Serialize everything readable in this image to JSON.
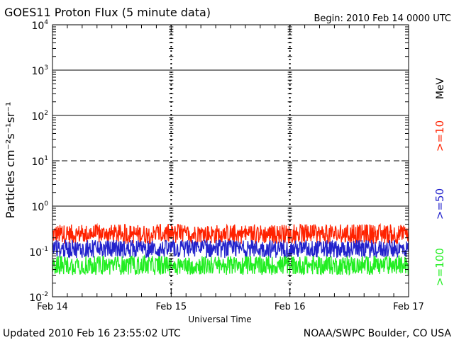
{
  "header": {
    "title": "GOES11 Proton Flux (5 minute data)",
    "begin": "Begin: 2010 Feb 14 0000 UTC"
  },
  "footer": {
    "updated": "Updated 2010 Feb 16 23:55:02 UTC",
    "source": "NOAA/SWPC Boulder, CO USA"
  },
  "legend": {
    "unit": "MeV",
    "entries": [
      {
        "label": ">=10",
        "color": "#ff2200"
      },
      {
        "label": ">=50",
        "color": "#2222cc"
      },
      {
        "label": ">=100",
        "color": "#22ee22"
      }
    ]
  },
  "chart_data": {
    "type": "line",
    "title": "GOES11 Proton Flux (5 minute data)",
    "xlabel": "Universal Time",
    "ylabel": "Particles cm⁻²s⁻¹sr⁻¹",
    "y_scale": "log",
    "ylim": [
      0.01,
      10000
    ],
    "y_ticks": [
      {
        "base": "10",
        "exp": "-2"
      },
      {
        "base": "10",
        "exp": "-1"
      },
      {
        "base": "10",
        "exp": "0"
      },
      {
        "base": "10",
        "exp": "1"
      },
      {
        "base": "10",
        "exp": "2"
      },
      {
        "base": "10",
        "exp": "3"
      },
      {
        "base": "10",
        "exp": "4"
      }
    ],
    "x_ticks": [
      "Feb 14",
      "Feb 15",
      "Feb 16",
      "Feb 17"
    ],
    "xlim": [
      "2010-02-14",
      "2010-02-17"
    ],
    "threshold_lines": [
      {
        "value": 1,
        "style": "solid"
      },
      {
        "value": 10,
        "style": "dashed"
      },
      {
        "value": 100,
        "style": "solid"
      },
      {
        "value": 1000,
        "style": "solid"
      }
    ],
    "series": [
      {
        "name": ">=10 MeV",
        "color": "#ff2200",
        "approx_range": [
          0.12,
          0.45
        ]
      },
      {
        "name": ">=50 MeV",
        "color": "#2222cc",
        "approx_range": [
          0.06,
          0.2
        ]
      },
      {
        "name": ">=100 MeV",
        "color": "#22ee22",
        "approx_range": [
          0.025,
          0.09
        ]
      }
    ]
  }
}
